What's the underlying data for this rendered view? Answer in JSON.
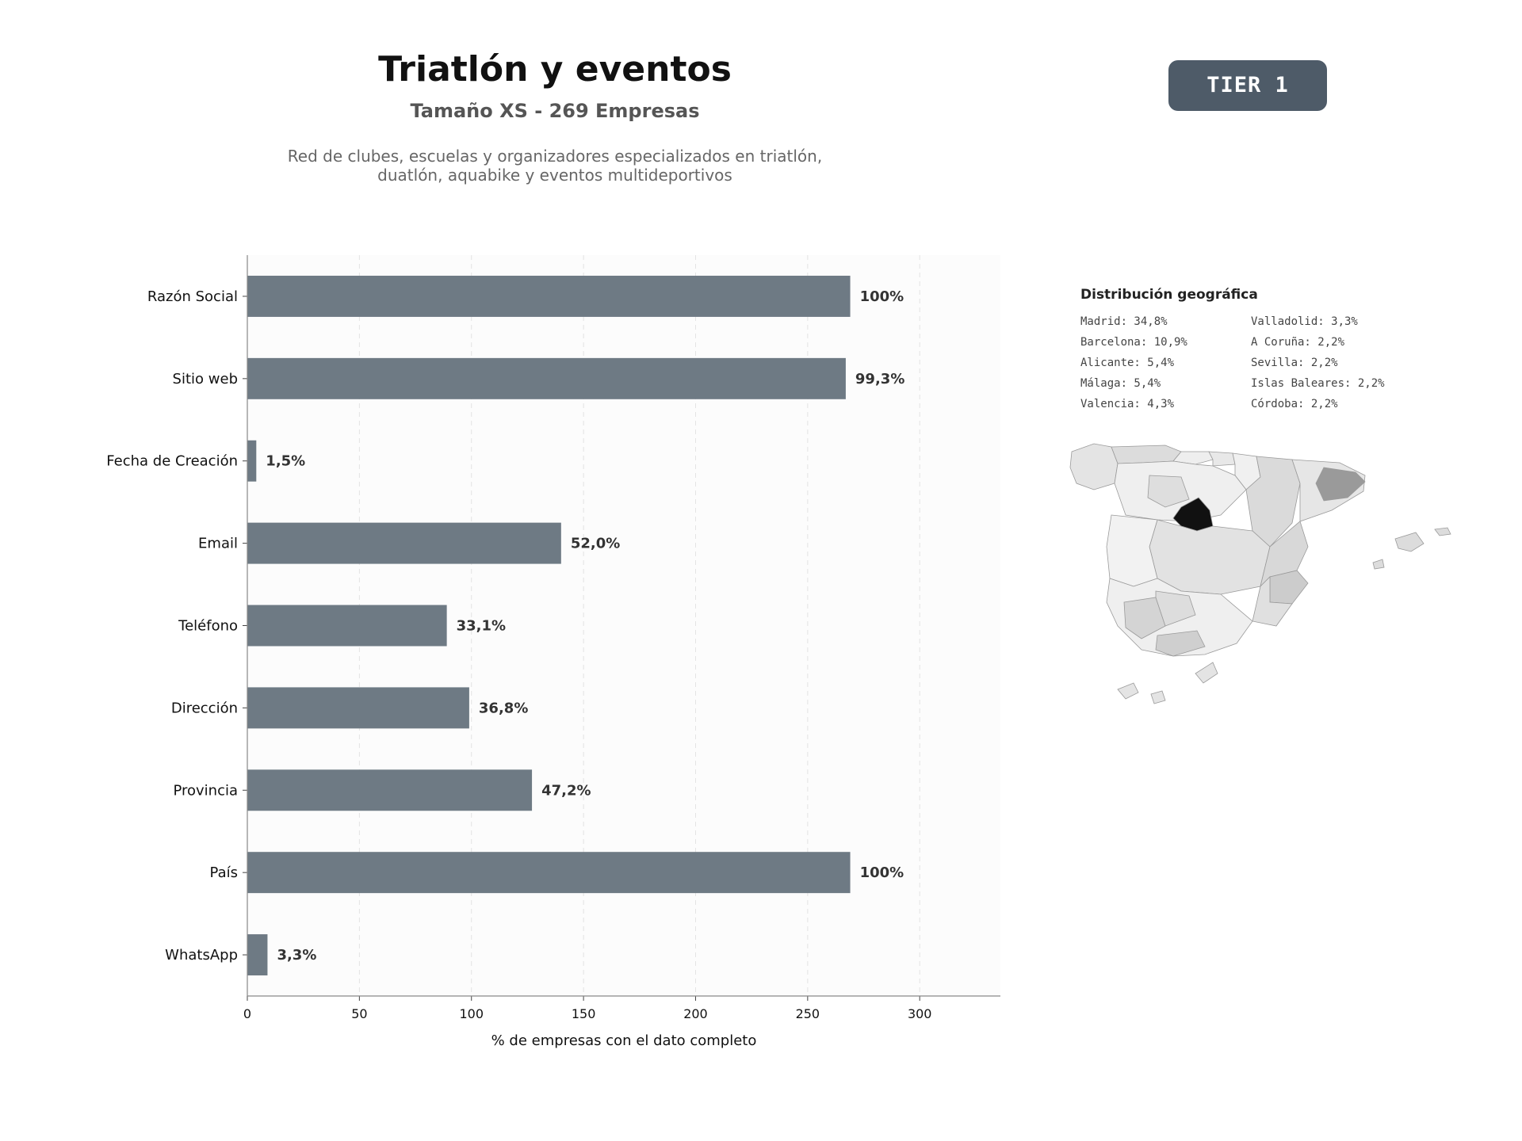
{
  "header": {
    "title": "Triatlón y eventos",
    "subtitle": "Tamaño XS - 269 Empresas",
    "description_line1": "Red de clubes, escuelas y organizadores especializados en triatlón,",
    "description_line2": "duatlón, aquabike y eventos multideportivos",
    "badge": "TIER 1"
  },
  "colors": {
    "bar": "#6e7a84",
    "badge": "#4e5b68",
    "plot_bg": "#fcfcfc",
    "region_max": "#111111"
  },
  "chart_data": {
    "type": "bar",
    "orientation": "horizontal",
    "categories": [
      "Razón Social",
      "Sitio web",
      "Fecha de Creación",
      "Email",
      "Teléfono",
      "Dirección",
      "Provincia",
      "País",
      "WhatsApp"
    ],
    "values": [
      269,
      267,
      4,
      140,
      89,
      99,
      127,
      269,
      9
    ],
    "value_labels": [
      "100%",
      "99,3%",
      "1,5%",
      "52,0%",
      "33,1%",
      "36,8%",
      "47,2%",
      "100%",
      "3,3%"
    ],
    "xlabel": "% de empresas con el dato completo",
    "ylabel": "",
    "xlim": [
      0,
      336
    ],
    "xticks": [
      0,
      50,
      100,
      150,
      200,
      250,
      300
    ],
    "grid": "vertical-dashed"
  },
  "geo": {
    "title": "Distribución geográfica",
    "items": [
      {
        "label": "Madrid: 34,8%"
      },
      {
        "label": "Barcelona: 10,9%"
      },
      {
        "label": "Alicante: 5,4%"
      },
      {
        "label": "Málaga: 5,4%"
      },
      {
        "label": "Valencia: 4,3%"
      },
      {
        "label": "Valladolid: 3,3%"
      },
      {
        "label": "A Coruña: 2,2%"
      },
      {
        "label": "Sevilla: 2,2%"
      },
      {
        "label": "Islas Baleares: 2,2%"
      },
      {
        "label": "Córdoba: 2,2%"
      }
    ]
  }
}
